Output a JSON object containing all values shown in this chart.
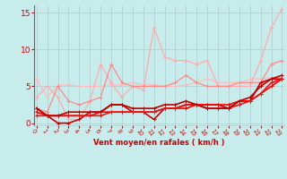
{
  "x": [
    0,
    1,
    2,
    3,
    4,
    5,
    6,
    7,
    8,
    9,
    10,
    11,
    12,
    13,
    14,
    15,
    16,
    17,
    18,
    19,
    20,
    21,
    22,
    23
  ],
  "series": [
    {
      "y": [
        6.0,
        3.5,
        5.2,
        5.2,
        5.0,
        5.0,
        5.0,
        5.2,
        5.2,
        5.5,
        5.2,
        5.2,
        5.0,
        5.0,
        5.2,
        5.5,
        6.0,
        5.5,
        5.5,
        5.5,
        6.0,
        6.0,
        6.2,
        6.2
      ],
      "color": "#ffbbbb",
      "lw": 0.9,
      "marker": "+"
    },
    {
      "y": [
        3.5,
        5.0,
        3.5,
        0.5,
        0.5,
        3.0,
        8.0,
        5.5,
        3.5,
        5.0,
        4.5,
        13.0,
        9.0,
        8.5,
        8.5,
        8.0,
        8.5,
        5.0,
        5.0,
        5.0,
        5.0,
        8.5,
        13.0,
        15.5
      ],
      "color": "#ffaaaa",
      "lw": 0.9,
      "marker": "+"
    },
    {
      "y": [
        2.0,
        1.5,
        5.0,
        3.0,
        2.5,
        3.0,
        3.5,
        8.0,
        5.5,
        5.0,
        5.0,
        5.0,
        5.0,
        5.5,
        6.5,
        5.5,
        5.0,
        5.0,
        5.0,
        5.5,
        5.5,
        5.5,
        8.0,
        8.5
      ],
      "color": "#ff8888",
      "lw": 0.9,
      "marker": "+"
    },
    {
      "y": [
        2.0,
        1.0,
        0.0,
        0.0,
        0.5,
        1.5,
        1.5,
        2.5,
        2.5,
        1.5,
        1.5,
        0.5,
        2.0,
        2.0,
        2.5,
        2.5,
        2.5,
        2.5,
        2.0,
        3.0,
        3.0,
        5.5,
        6.0,
        6.0
      ],
      "color": "#cc0000",
      "lw": 1.2,
      "marker": "+"
    },
    {
      "y": [
        1.5,
        1.0,
        1.0,
        1.0,
        1.0,
        1.0,
        1.5,
        1.5,
        1.5,
        1.5,
        1.5,
        1.5,
        2.0,
        2.0,
        2.0,
        2.5,
        2.5,
        2.5,
        2.5,
        3.0,
        3.0,
        4.0,
        5.0,
        6.0
      ],
      "color": "#ff0000",
      "lw": 1.2,
      "marker": "+"
    },
    {
      "y": [
        1.0,
        1.0,
        1.0,
        1.0,
        1.0,
        1.0,
        1.0,
        1.5,
        1.5,
        1.5,
        1.5,
        1.5,
        2.0,
        2.0,
        2.5,
        2.5,
        2.0,
        2.0,
        2.0,
        2.5,
        3.0,
        4.0,
        5.5,
        6.0
      ],
      "color": "#ee1111",
      "lw": 1.2,
      "marker": "+"
    },
    {
      "y": [
        2.0,
        1.0,
        1.0,
        1.5,
        1.5,
        1.5,
        1.5,
        2.5,
        2.5,
        2.0,
        2.0,
        2.0,
        2.5,
        2.5,
        3.0,
        2.5,
        2.0,
        2.0,
        2.0,
        3.0,
        3.5,
        5.0,
        6.0,
        6.5
      ],
      "color": "#bb0000",
      "lw": 1.2,
      "marker": "+"
    }
  ],
  "xlabel": "Vent moyen/en rafales ( km/h )",
  "xlim": [
    -0.2,
    23.2
  ],
  "ylim": [
    -0.3,
    16.0
  ],
  "yticks": [
    0,
    5,
    10,
    15
  ],
  "xticks": [
    0,
    1,
    2,
    3,
    4,
    5,
    6,
    7,
    8,
    9,
    10,
    11,
    12,
    13,
    14,
    15,
    16,
    17,
    18,
    19,
    20,
    21,
    22,
    23
  ],
  "bg_color": "#c8ecec",
  "grid_color": "#aacccc",
  "tick_color": "#cc0000",
  "label_color": "#cc0000"
}
